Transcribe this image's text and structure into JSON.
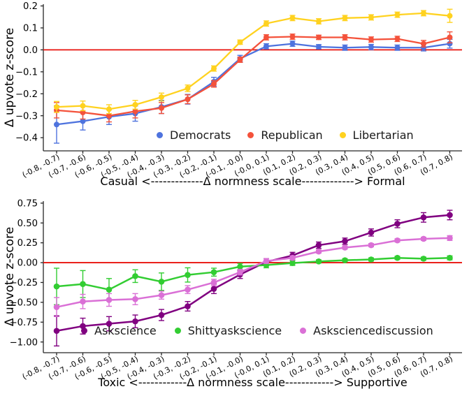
{
  "style": {
    "axis_color": "#262626",
    "text_color": "#000000",
    "zero_line_color": "#e8120c",
    "background": "#ffffff"
  },
  "chart_data": [
    {
      "type": "line",
      "id": "political",
      "ylabel": "Δ upvote z-score",
      "xlabel": "Casual <-------------Δ normness scale-------------> Formal",
      "ylim": [
        -0.46,
        0.208
      ],
      "grid": false,
      "legend_position": "lower center inside",
      "zero_line": 0.0,
      "yticks": [
        {
          "v": 0.2,
          "label": "0.2"
        },
        {
          "v": 0.1,
          "label": "0.1"
        },
        {
          "v": 0.0,
          "label": "0.0"
        },
        {
          "v": -0.1,
          "label": "−0.1"
        },
        {
          "v": -0.2,
          "label": "−0.2"
        },
        {
          "v": -0.3,
          "label": "−0.3"
        },
        {
          "v": -0.4,
          "label": "−0.4"
        }
      ],
      "categories": [
        "(-0.8, -0.7)",
        "(-0.7, -0.6)",
        "(-0.6, -0.5)",
        "(-0.5, -0.4)",
        "(-0.4, -0.3)",
        "(-0.3, -0.2)",
        "(-0.2, -0.1)",
        "(-0.1, -0.0)",
        "(-0.0, 0.1)",
        "(0.1, 0.2)",
        "(0.2, 0.3)",
        "(0.3, 0.4)",
        "(0.4, 0.5)",
        "(0.5, 0.6)",
        "(0.6, 0.7)",
        "(0.7, 0.8)"
      ],
      "series": [
        {
          "name": "Democrats",
          "color": "#4e73de",
          "values": [
            -0.34,
            -0.325,
            -0.305,
            -0.29,
            -0.26,
            -0.225,
            -0.145,
            -0.04,
            0.016,
            0.028,
            0.014,
            0.01,
            0.013,
            0.01,
            0.01,
            0.028
          ],
          "errors": [
            0.085,
            0.04,
            0.035,
            0.035,
            0.03,
            0.022,
            0.02,
            0.015,
            0.012,
            0.012,
            0.01,
            0.012,
            0.012,
            0.012,
            0.015,
            0.02
          ]
        },
        {
          "name": "Republican",
          "color": "#f4523b",
          "values": [
            -0.275,
            -0.285,
            -0.3,
            -0.28,
            -0.265,
            -0.225,
            -0.155,
            -0.045,
            0.057,
            0.06,
            0.057,
            0.057,
            0.047,
            0.05,
            0.028,
            0.057
          ],
          "errors": [
            0.035,
            0.03,
            0.028,
            0.03,
            0.025,
            0.02,
            0.015,
            0.012,
            0.012,
            0.012,
            0.01,
            0.012,
            0.012,
            0.012,
            0.015,
            0.025
          ]
        },
        {
          "name": "Libertarian",
          "color": "#ffd21f",
          "values": [
            -0.26,
            -0.255,
            -0.27,
            -0.25,
            -0.215,
            -0.175,
            -0.085,
            0.035,
            0.12,
            0.145,
            0.13,
            0.145,
            0.148,
            0.16,
            0.167,
            0.155
          ],
          "errors": [
            0.025,
            0.022,
            0.02,
            0.02,
            0.018,
            0.015,
            0.012,
            0.01,
            0.012,
            0.012,
            0.012,
            0.012,
            0.012,
            0.012,
            0.012,
            0.03
          ]
        }
      ]
    },
    {
      "type": "line",
      "id": "askscience",
      "ylabel": "Δ upvote z-score",
      "xlabel": "Toxic <------------Δ normness scale------------> Supportive",
      "ylim": [
        -1.135,
        0.775
      ],
      "grid": false,
      "legend_position": "lower center inside",
      "zero_line": 0.0,
      "yticks": [
        {
          "v": 0.75,
          "label": "0.75"
        },
        {
          "v": 0.5,
          "label": "0.50"
        },
        {
          "v": 0.25,
          "label": "0.25"
        },
        {
          "v": 0.0,
          "label": "0.00"
        },
        {
          "v": -0.25,
          "label": "−0.25"
        },
        {
          "v": -0.5,
          "label": "−0.50"
        },
        {
          "v": -0.75,
          "label": "−0.75"
        },
        {
          "v": -1.0,
          "label": "−1.00"
        }
      ],
      "categories": [
        "(-0.8, -0.7)",
        "(-0.7, -0.6)",
        "(-0.6, -0.5)",
        "(-0.5, -0.4)",
        "(-0.4, -0.3)",
        "(-0.3, -0.2)",
        "(-0.2, -0.1)",
        "(-0.1, -0.0)",
        "(-0.0, 0.1)",
        "(0.1, 0.2)",
        "(0.2, 0.3)",
        "(0.3, 0.4)",
        "(0.4, 0.5)",
        "(0.5, 0.6)",
        "(0.6, 0.7)",
        "(0.7, 0.8)"
      ],
      "series": [
        {
          "name": "Askscience",
          "color": "#800080",
          "values": [
            -0.86,
            -0.8,
            -0.77,
            -0.74,
            -0.66,
            -0.55,
            -0.33,
            -0.15,
            0.01,
            0.09,
            0.22,
            0.27,
            0.38,
            0.49,
            0.57,
            0.6
          ],
          "errors": [
            0.19,
            0.1,
            0.09,
            0.08,
            0.07,
            0.06,
            0.06,
            0.05,
            0.04,
            0.04,
            0.04,
            0.04,
            0.045,
            0.05,
            0.06,
            0.06
          ]
        },
        {
          "name": "Shittyaskscience",
          "color": "#32cd32",
          "values": [
            -0.3,
            -0.27,
            -0.34,
            -0.17,
            -0.24,
            -0.155,
            -0.12,
            -0.05,
            -0.03,
            -0.005,
            0.015,
            0.03,
            0.04,
            0.06,
            0.05,
            0.06
          ],
          "errors": [
            0.23,
            0.17,
            0.14,
            0.08,
            0.11,
            0.09,
            0.05,
            0.04,
            0.035,
            0.03,
            0.02,
            0.02,
            0.02,
            0.02,
            0.02,
            0.025
          ]
        },
        {
          "name": "Asksciencediscussion",
          "color": "#da70d6",
          "values": [
            -0.56,
            -0.49,
            -0.47,
            -0.46,
            -0.41,
            -0.34,
            -0.25,
            -0.12,
            0.02,
            0.06,
            0.14,
            0.19,
            0.22,
            0.28,
            0.3,
            0.31
          ],
          "errors": [
            0.12,
            0.09,
            0.08,
            0.07,
            0.05,
            0.05,
            0.04,
            0.035,
            0.03,
            0.025,
            0.02,
            0.02,
            0.02,
            0.02,
            0.02,
            0.03
          ]
        }
      ]
    }
  ]
}
